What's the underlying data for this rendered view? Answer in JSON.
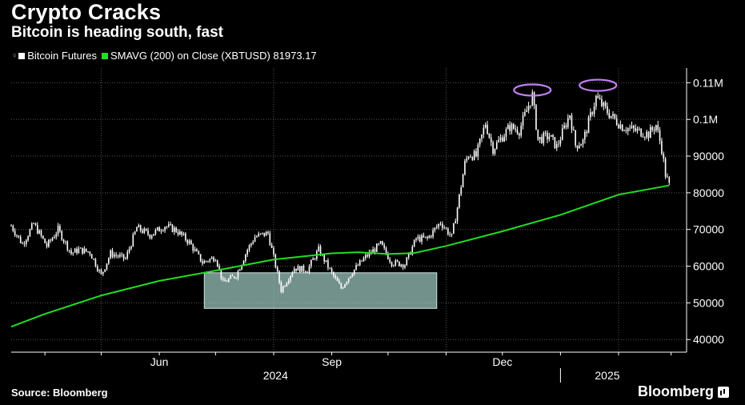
{
  "header": {
    "title": "Crypto Cracks",
    "subtitle": "Bitcoin is heading south, fast"
  },
  "footer": {
    "source": "Source: Bloomberg",
    "brand": "Bloomberg"
  },
  "legend": {
    "series1": "Bitcoin Futures",
    "series2": "SMAVG (200)  on Close (XBTUSD) 81973.17"
  },
  "colors": {
    "candle": "#ffffff",
    "sma": "#22dd22",
    "highlight_box": "#9fc9c1",
    "peak_marker": "#c080f0",
    "grid": "#555555"
  },
  "chart_data": {
    "type": "line",
    "ylim": [
      37000,
      114000
    ],
    "y_ticks": [
      40000,
      50000,
      60000,
      70000,
      80000,
      90000,
      100000,
      110000
    ],
    "y_tick_labels": [
      "40000",
      "50000",
      "60000",
      "70000",
      "80000",
      "90000",
      "0.1M",
      "0.11M"
    ],
    "x_ticks": [
      {
        "label": "Jun",
        "date": "2024-06-01"
      },
      {
        "label": "Sep",
        "date": "2024-09-01"
      },
      {
        "label": "Dec",
        "date": "2024-12-01"
      }
    ],
    "year_labels": [
      {
        "label": "2024",
        "date": "2024-08-02"
      },
      {
        "label": "2025",
        "date": "2025-01-26"
      }
    ],
    "year_boundary": "2025-01-01",
    "xlim": [
      "2024-03-14",
      "2025-03-05"
    ],
    "grid_dates": [
      "2024-05-01",
      "2024-08-01",
      "2024-11-01",
      "2025-02-01"
    ],
    "series": [
      {
        "name": "Bitcoin Futures",
        "points": [
          [
            "2024-03-14",
            71000
          ],
          [
            "2024-03-20",
            66000
          ],
          [
            "2024-03-26",
            71500
          ],
          [
            "2024-04-02",
            65500
          ],
          [
            "2024-04-08",
            70000
          ],
          [
            "2024-04-15",
            63500
          ],
          [
            "2024-04-19",
            64500
          ],
          [
            "2024-04-25",
            63800
          ],
          [
            "2024-05-01",
            57500
          ],
          [
            "2024-05-06",
            63500
          ],
          [
            "2024-05-14",
            62000
          ],
          [
            "2024-05-20",
            70500
          ],
          [
            "2024-05-27",
            68500
          ],
          [
            "2024-06-04",
            71000
          ],
          [
            "2024-06-10",
            69800
          ],
          [
            "2024-06-17",
            66500
          ],
          [
            "2024-06-24",
            61000
          ],
          [
            "2024-07-01",
            62500
          ],
          [
            "2024-07-05",
            55500
          ],
          [
            "2024-07-12",
            57500
          ],
          [
            "2024-07-18",
            64500
          ],
          [
            "2024-07-22",
            68000
          ],
          [
            "2024-07-29",
            69000
          ],
          [
            "2024-08-05",
            53500
          ],
          [
            "2024-08-12",
            59500
          ],
          [
            "2024-08-19",
            59000
          ],
          [
            "2024-08-25",
            64500
          ],
          [
            "2024-09-01",
            58000
          ],
          [
            "2024-09-06",
            54000
          ],
          [
            "2024-09-12",
            58500
          ],
          [
            "2024-09-19",
            62500
          ],
          [
            "2024-09-27",
            66000
          ],
          [
            "2024-10-03",
            61000
          ],
          [
            "2024-10-10",
            60500
          ],
          [
            "2024-10-16",
            67500
          ],
          [
            "2024-10-22",
            67500
          ],
          [
            "2024-10-29",
            72000
          ],
          [
            "2024-11-04",
            68000
          ],
          [
            "2024-11-07",
            76000
          ],
          [
            "2024-11-11",
            88000
          ],
          [
            "2024-11-13",
            90500
          ],
          [
            "2024-11-17",
            90000
          ],
          [
            "2024-11-22",
            99000
          ],
          [
            "2024-11-26",
            92000
          ],
          [
            "2024-12-05",
            98000
          ],
          [
            "2024-12-10",
            97000
          ],
          [
            "2024-12-17",
            106500
          ],
          [
            "2024-12-20",
            94500
          ],
          [
            "2024-12-26",
            95500
          ],
          [
            "2024-12-30",
            92500
          ],
          [
            "2025-01-06",
            101500
          ],
          [
            "2025-01-09",
            93000
          ],
          [
            "2025-01-13",
            94000
          ],
          [
            "2025-01-20",
            106000
          ],
          [
            "2025-01-23",
            104000
          ],
          [
            "2025-01-27",
            101500
          ],
          [
            "2025-02-03",
            98000
          ],
          [
            "2025-02-10",
            97000
          ],
          [
            "2025-02-17",
            96000
          ],
          [
            "2025-02-21",
            98500
          ],
          [
            "2025-02-24",
            92000
          ],
          [
            "2025-02-26",
            85000
          ],
          [
            "2025-02-28",
            82000
          ]
        ]
      },
      {
        "name": "SMAVG (200)  on Close (XBTUSD) 81973.17",
        "points": [
          [
            "2024-03-14",
            43500
          ],
          [
            "2024-04-01",
            47000
          ],
          [
            "2024-05-01",
            52000
          ],
          [
            "2024-06-01",
            56000
          ],
          [
            "2024-07-01",
            58800
          ],
          [
            "2024-08-01",
            61800
          ],
          [
            "2024-09-01",
            63500
          ],
          [
            "2024-09-15",
            63800
          ],
          [
            "2024-10-01",
            63300
          ],
          [
            "2024-10-15",
            63600
          ],
          [
            "2024-11-01",
            65500
          ],
          [
            "2024-12-01",
            69500
          ],
          [
            "2025-01-01",
            74000
          ],
          [
            "2025-02-01",
            79500
          ],
          [
            "2025-02-28",
            82000
          ]
        ]
      }
    ],
    "highlight_box": {
      "x0": "2024-06-25",
      "x1": "2024-10-27",
      "y0": 48500,
      "y1": 58200
    },
    "peak_markers": [
      {
        "date": "2024-12-17",
        "value": 108000
      },
      {
        "date": "2025-01-21",
        "value": 109300
      }
    ]
  }
}
